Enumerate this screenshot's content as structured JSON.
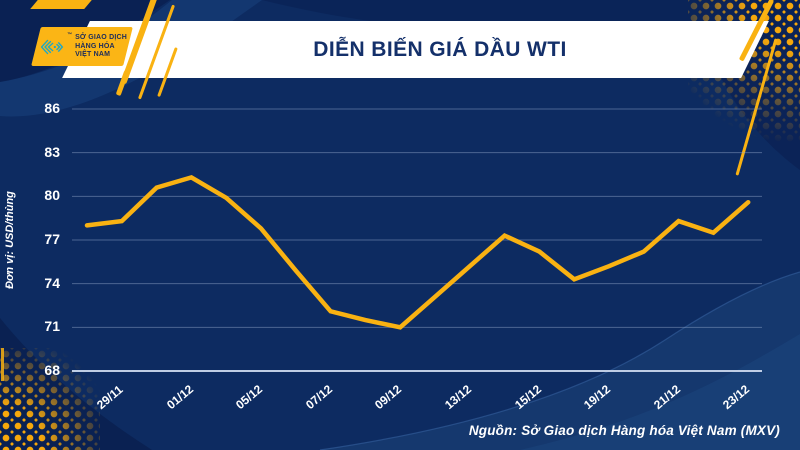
{
  "header": {
    "title": "DIỄN BIẾN GIÁ DẦU WTI",
    "logo": {
      "line1": "SỞ GIAO DỊCH",
      "line2": "HÀNG HÓA",
      "line3": "VIỆT NAM",
      "trademark": "™"
    }
  },
  "chart_data": {
    "type": "line",
    "title": "DIỄN BIẾN GIÁ DẦU WTI",
    "ylabel": "Đơn vị: USD/thùng",
    "ylim": [
      68,
      86
    ],
    "y_ticks": [
      68,
      71,
      74,
      77,
      80,
      83,
      86
    ],
    "x_tick_labels": [
      "29/11",
      "01/12",
      "05/12",
      "07/12",
      "09/12",
      "13/12",
      "15/12",
      "19/12",
      "21/12",
      "23/12"
    ],
    "x_tick_indices": [
      0,
      2,
      4,
      6,
      8,
      10,
      12,
      14,
      16,
      18
    ],
    "values": [
      78.0,
      78.3,
      80.6,
      81.3,
      79.9,
      77.8,
      74.9,
      72.1,
      71.5,
      71.0,
      73.1,
      75.2,
      77.3,
      76.2,
      74.3,
      75.2,
      76.2,
      78.3,
      77.5,
      79.6
    ],
    "grid": true,
    "legend": false,
    "line_color": "#F9B212"
  },
  "source": {
    "text": "Nguồn: Sở Giao dịch Hàng hóa Việt Nam (MXV)"
  },
  "colors": {
    "background_navy": "#0D2B61",
    "dark_wave": "#0A2153",
    "light_wave": "#15386E",
    "accent_yellow": "#F9B212",
    "logo_teal": "#1EA7C5",
    "banner_white": "#FFFFFF",
    "title_navy": "#14306A",
    "gridline": "#8BA0C4",
    "axis_line": "#C9D6EC",
    "tick_text": "#FFFFFF"
  }
}
